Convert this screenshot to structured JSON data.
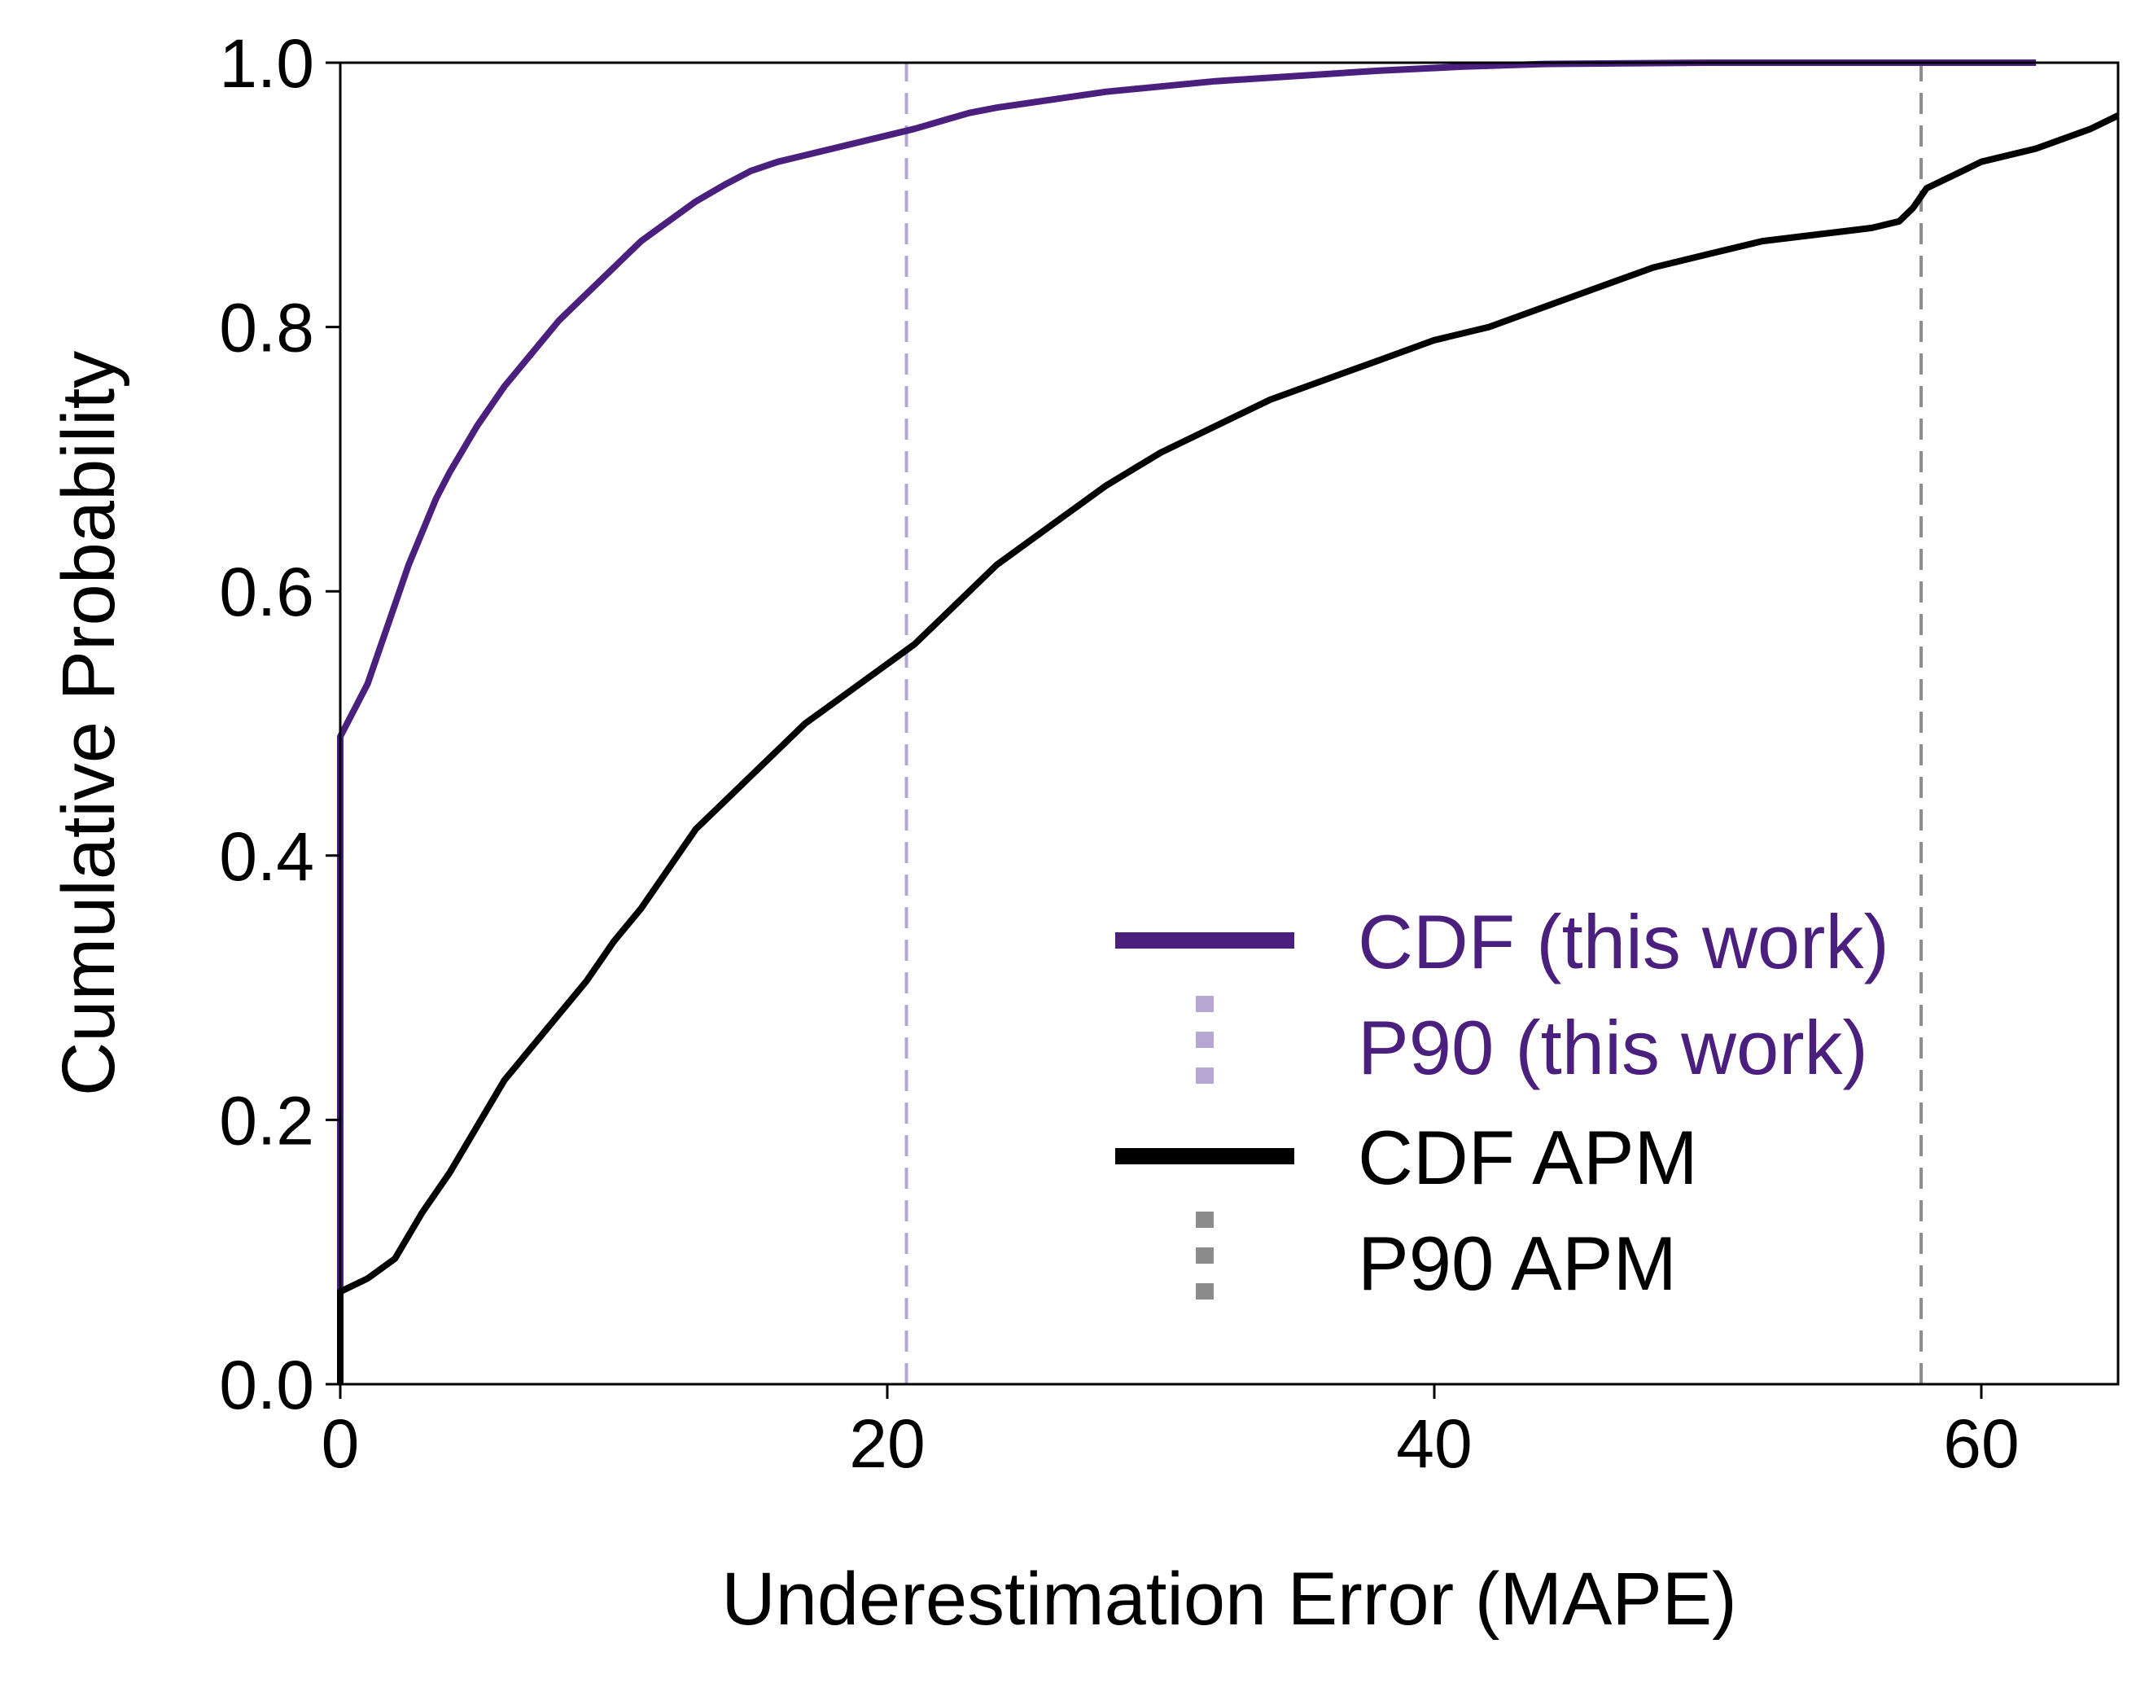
{
  "chart_data": {
    "type": "line",
    "title": "",
    "xlabel": "Underestimation Error (MAPE)",
    "ylabel": "Cumulative Probability",
    "xlim": [
      0,
      65
    ],
    "ylim": [
      0,
      1.0
    ],
    "xticks": [
      0,
      20,
      40,
      60
    ],
    "xtick_labels": [
      "0",
      "20",
      "40",
      "60"
    ],
    "yticks": [
      0,
      0.2,
      0.4,
      0.6,
      0.8,
      1.0
    ],
    "ytick_labels": [
      "0.0",
      "0.2",
      "0.4",
      "0.6",
      "0.8",
      "1.0"
    ],
    "grid": false,
    "legend_position": "bottom-right",
    "series": [
      {
        "name": "CDF (this work)",
        "color": "#4b1f7e",
        "x": [
          0,
          0,
          0.5,
          1,
          1.5,
          2,
          2.5,
          3,
          3.5,
          4,
          5,
          6,
          7,
          8,
          9,
          10,
          11,
          12,
          13,
          14,
          15,
          16,
          17,
          18,
          19,
          20,
          21,
          22,
          23,
          24,
          26,
          28,
          30,
          32,
          35,
          38,
          41,
          44,
          50,
          55,
          62
        ],
        "y": [
          0,
          0.49,
          0.51,
          0.53,
          0.56,
          0.59,
          0.62,
          0.645,
          0.67,
          0.69,
          0.725,
          0.755,
          0.78,
          0.805,
          0.825,
          0.845,
          0.865,
          0.88,
          0.895,
          0.907,
          0.918,
          0.925,
          0.93,
          0.935,
          0.94,
          0.945,
          0.95,
          0.956,
          0.962,
          0.966,
          0.972,
          0.978,
          0.982,
          0.986,
          0.99,
          0.994,
          0.997,
          0.999,
          1.0,
          1.0,
          1.0
        ]
      },
      {
        "name": "P90 (this work)",
        "color": "#b6a6d3",
        "style": "dashed",
        "x": [
          20.7,
          20.7
        ],
        "y": [
          0,
          1.0
        ]
      },
      {
        "name": "CDF APM",
        "color": "#000000",
        "x": [
          0,
          0,
          1,
          2,
          3,
          4,
          5,
          6,
          7,
          8,
          9,
          10,
          11,
          12,
          13,
          14,
          15,
          16,
          17,
          18,
          19,
          20,
          21,
          22,
          23,
          24,
          25,
          26,
          27,
          28,
          30,
          32,
          34,
          36,
          38,
          40,
          42,
          44,
          46,
          48,
          50,
          52,
          54,
          56,
          57,
          57.5,
          58,
          59,
          60,
          62,
          64,
          65
        ],
        "y": [
          0,
          0.07,
          0.08,
          0.095,
          0.13,
          0.16,
          0.195,
          0.23,
          0.255,
          0.28,
          0.305,
          0.335,
          0.36,
          0.39,
          0.42,
          0.44,
          0.46,
          0.48,
          0.5,
          0.515,
          0.53,
          0.545,
          0.56,
          0.58,
          0.6,
          0.62,
          0.635,
          0.65,
          0.665,
          0.68,
          0.705,
          0.725,
          0.745,
          0.76,
          0.775,
          0.79,
          0.8,
          0.815,
          0.83,
          0.845,
          0.855,
          0.865,
          0.87,
          0.875,
          0.88,
          0.89,
          0.905,
          0.915,
          0.925,
          0.935,
          0.95,
          0.96
        ]
      },
      {
        "name": "P90 APM",
        "color": "#8c8c8c",
        "style": "dashed",
        "x": [
          57.8,
          57.8
        ],
        "y": [
          0,
          1.0
        ]
      }
    ]
  }
}
